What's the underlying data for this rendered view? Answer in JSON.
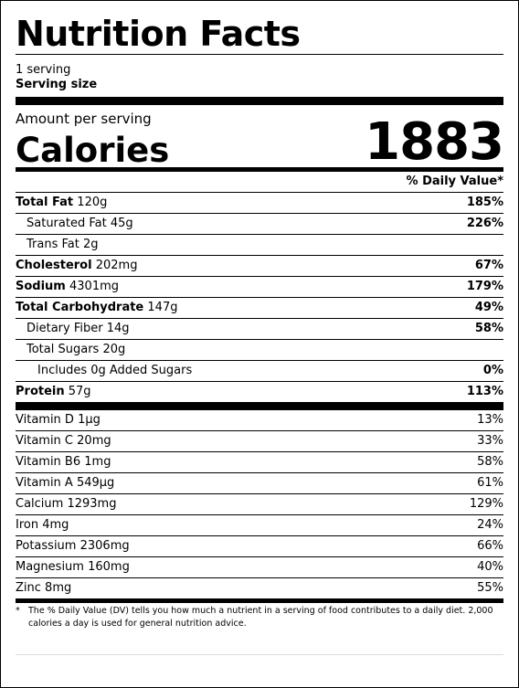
{
  "title": "Nutrition Facts",
  "serving_count": "1 serving",
  "serving_size_label": "Serving size",
  "amount_per_serving": "Amount per serving",
  "calories_label": "Calories",
  "calories_value": "1883",
  "dv_header": "% Daily Value*",
  "nutrients": [
    {
      "name": "Total Fat",
      "amount": "120g",
      "dv": "185%"
    },
    {
      "name": "Saturated Fat",
      "amount": "45g",
      "dv": "226%"
    },
    {
      "name": "Trans Fat",
      "amount": "2g",
      "dv": ""
    },
    {
      "name": "Cholesterol",
      "amount": "202mg",
      "dv": "67%"
    },
    {
      "name": "Sodium",
      "amount": "4301mg",
      "dv": "179%"
    },
    {
      "name": "Total Carbohydrate",
      "amount": "147g",
      "dv": "49%"
    },
    {
      "name": "Dietary Fiber",
      "amount": "14g",
      "dv": "58%"
    },
    {
      "name": "Total Sugars",
      "amount": "20g",
      "dv": ""
    },
    {
      "name": "Includes 0g Added Sugars",
      "amount": "",
      "dv": "0%"
    },
    {
      "name": "Protein",
      "amount": "57g",
      "dv": "113%"
    }
  ],
  "vitamins": [
    {
      "name": "Vitamin D",
      "amount": "1µg",
      "dv": "13%"
    },
    {
      "name": "Vitamin C",
      "amount": "20mg",
      "dv": "33%"
    },
    {
      "name": "Vitamin B6",
      "amount": "1mg",
      "dv": "58%"
    },
    {
      "name": "Vitamin A",
      "amount": "549µg",
      "dv": "61%"
    },
    {
      "name": "Calcium",
      "amount": "1293mg",
      "dv": "129%"
    },
    {
      "name": "Iron",
      "amount": "4mg",
      "dv": "24%"
    },
    {
      "name": "Potassium",
      "amount": "2306mg",
      "dv": "66%"
    },
    {
      "name": "Magnesium",
      "amount": "160mg",
      "dv": "40%"
    },
    {
      "name": "Zinc",
      "amount": "8mg",
      "dv": "55%"
    }
  ],
  "footnote": {
    "star": "*",
    "text": "The % Daily Value (DV) tells you how much a nutrient in a serving of food contributes to a daily diet. 2,000 calories a day is used for general nutrition advice."
  }
}
